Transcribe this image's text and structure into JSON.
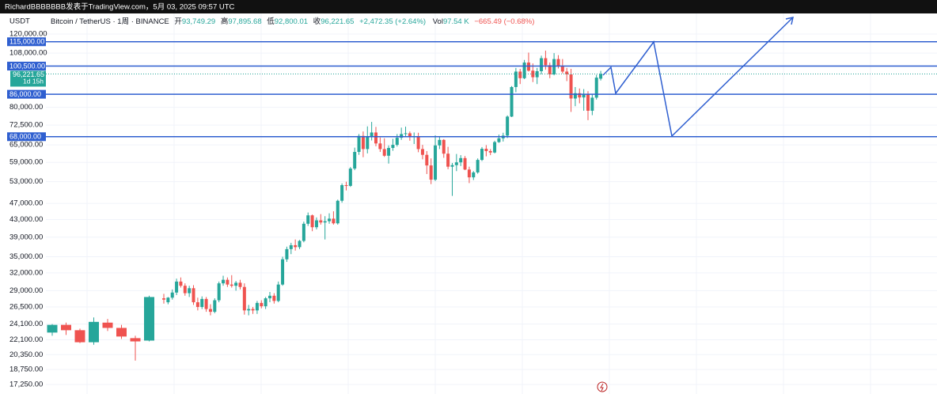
{
  "header": {
    "byline": "RichardBBBBBBB发表于TradingView.com，5月 03, 2025 09:57 UTC"
  },
  "legend": {
    "currency": "USDT",
    "symbol": "Bitcoin / TetherUS · 1周 · BINANCE",
    "open": {
      "label": "开",
      "value": "93,749.29"
    },
    "high": {
      "label": "高",
      "value": "97,895.68"
    },
    "low": {
      "label": "低",
      "value": "92,800.01"
    },
    "close": {
      "label": "收",
      "value": "96,221.65"
    },
    "change": "+2,472.35 (+2.64%)",
    "volume": {
      "label": "Vol",
      "value": "97.54 K"
    },
    "volume_change": "−665.49 (−0.68%)"
  },
  "chart_data": {
    "type": "candlestick",
    "log_scale": true,
    "grid": true,
    "up_color": "#26a69a",
    "down_color": "#ef5350",
    "level_color": "#2f5fd0",
    "ylim": [
      16370,
      134500
    ],
    "yticks": [
      {
        "value": 120000,
        "label": "120,000.00"
      },
      {
        "value": 108000,
        "label": "108,000.00"
      },
      {
        "value": 80000,
        "label": "80,000.00"
      },
      {
        "value": 72500,
        "label": "72,500.00"
      },
      {
        "value": 65000,
        "label": "65,000.00"
      },
      {
        "value": 59000,
        "label": "59,000.00"
      },
      {
        "value": 53000,
        "label": "53,000.00"
      },
      {
        "value": 47000,
        "label": "47,000.00"
      },
      {
        "value": 43000,
        "label": "43,000.00"
      },
      {
        "value": 39000,
        "label": "39,000.00"
      },
      {
        "value": 35000,
        "label": "35,000.00"
      },
      {
        "value": 32000,
        "label": "32,000.00"
      },
      {
        "value": 29000,
        "label": "29,000.00"
      },
      {
        "value": 26500,
        "label": "26,500.00"
      },
      {
        "value": 24100,
        "label": "24,100.00"
      },
      {
        "value": 22100,
        "label": "22,100.00"
      },
      {
        "value": 20350,
        "label": "20,350.00"
      },
      {
        "value": 18750,
        "label": "18,750.00"
      },
      {
        "value": 17250,
        "label": "17,250.00"
      }
    ],
    "levels": [
      {
        "value": 115000,
        "label": "115,000.00"
      },
      {
        "value": 100500,
        "label": "100,500.00"
      },
      {
        "value": 86000,
        "label": "86,000.00"
      },
      {
        "value": 68000,
        "label": "68,000.00"
      }
    ],
    "last_price": {
      "value": 96221.65,
      "label": "96,221.65",
      "countdown": "1d 15h"
    },
    "ohlc": [
      [
        23000,
        24100,
        22600,
        24000
      ],
      [
        24000,
        24300,
        22700,
        23300
      ],
      [
        23300,
        23500,
        21700,
        21800
      ],
      [
        21800,
        25000,
        21500,
        24400
      ],
      [
        24300,
        24800,
        23200,
        23600
      ],
      [
        23600,
        24000,
        22200,
        22500
      ],
      [
        22300,
        22600,
        19700,
        21900
      ],
      [
        22000,
        28200,
        21900,
        28000
      ],
      [
        27800,
        28500,
        27000,
        27600
      ],
      [
        27200,
        28000,
        26900,
        27900
      ],
      [
        27900,
        29200,
        27600,
        28700
      ],
      [
        28700,
        31000,
        28300,
        30500
      ],
      [
        30500,
        31200,
        29500,
        29800
      ],
      [
        29800,
        30200,
        28200,
        28600
      ],
      [
        28600,
        29800,
        28000,
        29400
      ],
      [
        29400,
        29900,
        26800,
        27200
      ],
      [
        27200,
        27900,
        26000,
        26500
      ],
      [
        26500,
        28100,
        26200,
        27700
      ],
      [
        27700,
        28000,
        25800,
        26200
      ],
      [
        26200,
        26900,
        25300,
        25800
      ],
      [
        25800,
        27800,
        25600,
        27500
      ],
      [
        27500,
        30500,
        27200,
        30200
      ],
      [
        30200,
        31500,
        29800,
        30800
      ],
      [
        30800,
        31200,
        29600,
        30000
      ],
      [
        30000,
        31600,
        29500,
        29800
      ],
      [
        29800,
        30600,
        29000,
        30300
      ],
      [
        30300,
        30800,
        29200,
        29600
      ],
      [
        29600,
        30200,
        25400,
        26000
      ],
      [
        26000,
        26800,
        25300,
        26200
      ],
      [
        26200,
        26500,
        25500,
        26000
      ],
      [
        26000,
        27400,
        25500,
        27100
      ],
      [
        27100,
        27500,
        26300,
        26600
      ],
      [
        26600,
        28000,
        26200,
        27800
      ],
      [
        27800,
        28800,
        27200,
        28200
      ],
      [
        28200,
        28600,
        27000,
        27400
      ],
      [
        27400,
        30500,
        27200,
        30000
      ],
      [
        30000,
        35000,
        29800,
        34500
      ],
      [
        34500,
        37000,
        34000,
        36500
      ],
      [
        36500,
        37800,
        35500,
        37300
      ],
      [
        37300,
        38500,
        36200,
        36900
      ],
      [
        36900,
        38400,
        36500,
        38200
      ],
      [
        38200,
        42500,
        37900,
        42000
      ],
      [
        42000,
        44700,
        41500,
        44000
      ],
      [
        44000,
        44200,
        40300,
        41200
      ],
      [
        41200,
        43500,
        40700,
        42800
      ],
      [
        42800,
        44300,
        41800,
        42300
      ],
      [
        42300,
        43800,
        38500,
        42600
      ],
      [
        42600,
        44500,
        42000,
        43200
      ],
      [
        43200,
        45000,
        41800,
        42100
      ],
      [
        42100,
        48000,
        41800,
        47700
      ],
      [
        47700,
        52500,
        47200,
        52000
      ],
      [
        52000,
        53000,
        50500,
        51800
      ],
      [
        51800,
        57500,
        51500,
        57000
      ],
      [
        57000,
        64000,
        56500,
        62500
      ],
      [
        62500,
        69000,
        61500,
        68300
      ],
      [
        68300,
        70000,
        60700,
        63500
      ],
      [
        63500,
        72000,
        62000,
        68200
      ],
      [
        68200,
        73800,
        66600,
        69600
      ],
      [
        69600,
        71800,
        64500,
        65500
      ],
      [
        65500,
        67700,
        62500,
        63500
      ],
      [
        63500,
        67400,
        60800,
        61200
      ],
      [
        61200,
        64800,
        58600,
        63900
      ],
      [
        63900,
        67200,
        62900,
        65000
      ],
      [
        65000,
        69000,
        64400,
        67600
      ],
      [
        67600,
        71500,
        66800,
        69000
      ],
      [
        69000,
        71900,
        68100,
        69300
      ],
      [
        69300,
        70000,
        66500,
        67800
      ],
      [
        67800,
        69600,
        65300,
        68200
      ],
      [
        68200,
        69500,
        62400,
        63500
      ],
      [
        63500,
        65000,
        60000,
        61500
      ],
      [
        61500,
        62800,
        55300,
        58000
      ],
      [
        58000,
        60300,
        52300,
        53600
      ],
      [
        53600,
        68500,
        53200,
        64800
      ],
      [
        64800,
        68000,
        63500,
        66800
      ],
      [
        66800,
        67100,
        60500,
        61900
      ],
      [
        61900,
        64300,
        56800,
        57600
      ],
      [
        57600,
        58800,
        49000,
        58100
      ],
      [
        58100,
        61800,
        56200,
        59000
      ],
      [
        59000,
        61400,
        57800,
        60400
      ],
      [
        60400,
        61100,
        56500,
        56700
      ],
      [
        56700,
        57600,
        52600,
        54300
      ],
      [
        54300,
        56200,
        53500,
        55800
      ],
      [
        55800,
        60300,
        55400,
        59800
      ],
      [
        59800,
        64200,
        59400,
        63600
      ],
      [
        63600,
        64900,
        61000,
        62800
      ],
      [
        62800,
        63500,
        61400,
        62300
      ],
      [
        62300,
        66500,
        62000,
        66000
      ],
      [
        66000,
        68800,
        65700,
        67400
      ],
      [
        67400,
        69500,
        66200,
        68400
      ],
      [
        68400,
        76500,
        67500,
        76000
      ],
      [
        76000,
        90000,
        75800,
        89500
      ],
      [
        89500,
        99500,
        87000,
        97500
      ],
      [
        97500,
        99000,
        91000,
        94000
      ],
      [
        94000,
        104000,
        93500,
        102500
      ],
      [
        102500,
        108300,
        97500,
        98000
      ],
      [
        98000,
        102000,
        92000,
        94500
      ],
      [
        94500,
        99500,
        91000,
        97700
      ],
      [
        97700,
        106500,
        96000,
        105000
      ],
      [
        105000,
        109500,
        98500,
        101000
      ],
      [
        101000,
        102500,
        94000,
        96000
      ],
      [
        96000,
        108000,
        95500,
        104500
      ],
      [
        104500,
        106800,
        99200,
        100500
      ],
      [
        100500,
        104500,
        96500,
        97500
      ],
      [
        97500,
        99500,
        92500,
        96000
      ],
      [
        96000,
        99000,
        78000,
        84000
      ],
      [
        84000,
        89500,
        80500,
        86500
      ],
      [
        86500,
        88800,
        81800,
        84500
      ],
      [
        84500,
        88500,
        78500,
        86000
      ],
      [
        86000,
        87500,
        74500,
        78500
      ],
      [
        78500,
        86200,
        76600,
        84400
      ],
      [
        84400,
        95800,
        83500,
        94300
      ],
      [
        93749.29,
        97895.68,
        92800.01,
        96221.65
      ]
    ]
  }
}
